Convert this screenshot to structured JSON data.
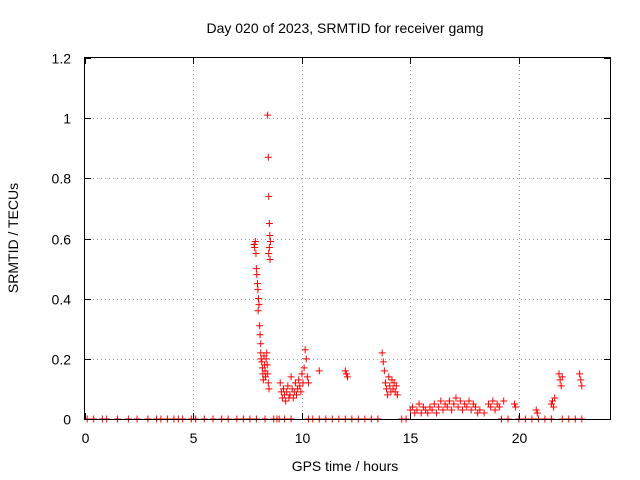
{
  "chart_data": {
    "type": "scatter",
    "title": "Day 020 of 2023, SRMTID for receiver gamg",
    "xlabel": "GPS time / hours",
    "ylabel": "SRMTID / TECUs",
    "xlim": [
      0,
      24.2
    ],
    "ylim": [
      0,
      1.2
    ],
    "xticks": [
      0,
      5,
      10,
      15,
      20
    ],
    "xtick_labels": [
      "0",
      "5",
      "10",
      "15",
      "20"
    ],
    "yticks": [
      0,
      0.2,
      0.4,
      0.6,
      0.8,
      1.0,
      1.2
    ],
    "ytick_labels": [
      "0",
      "0.2",
      "0.4",
      "0.6",
      "0.8",
      "1",
      "1.2"
    ],
    "grid": true,
    "marker": "plus",
    "color": "#ff0000",
    "series": [
      {
        "name": "SRMTID",
        "points": [
          [
            0.1,
            0
          ],
          [
            0.4,
            0
          ],
          [
            0.8,
            0
          ],
          [
            1.0,
            0
          ],
          [
            1.5,
            0
          ],
          [
            2.0,
            0
          ],
          [
            2.4,
            0
          ],
          [
            2.9,
            0
          ],
          [
            3.3,
            0
          ],
          [
            3.5,
            0
          ],
          [
            3.8,
            0
          ],
          [
            4.1,
            0
          ],
          [
            4.3,
            0
          ],
          [
            4.5,
            0
          ],
          [
            4.9,
            0
          ],
          [
            5.1,
            0
          ],
          [
            5.5,
            0
          ],
          [
            5.9,
            0
          ],
          [
            6.3,
            0
          ],
          [
            6.6,
            0
          ],
          [
            7.0,
            0
          ],
          [
            7.3,
            0
          ],
          [
            7.6,
            0
          ],
          [
            7.9,
            0
          ],
          [
            8.3,
            0
          ],
          [
            8.7,
            0
          ],
          [
            8.85,
            0
          ],
          [
            8.95,
            0
          ],
          [
            9.2,
            0
          ],
          [
            9.5,
            0
          ],
          [
            10.3,
            0
          ],
          [
            10.5,
            0
          ],
          [
            10.8,
            0
          ],
          [
            11.1,
            0
          ],
          [
            11.4,
            0
          ],
          [
            11.7,
            0
          ],
          [
            12.0,
            0
          ],
          [
            12.3,
            0
          ],
          [
            12.6,
            0
          ],
          [
            12.9,
            0
          ],
          [
            13.2,
            0
          ],
          [
            13.5,
            0
          ],
          [
            14.6,
            0
          ],
          [
            14.8,
            0
          ],
          [
            19.2,
            0
          ],
          [
            19.5,
            0
          ],
          [
            20.0,
            0
          ],
          [
            20.3,
            0
          ],
          [
            20.6,
            0
          ],
          [
            20.9,
            0
          ],
          [
            21.2,
            0
          ],
          [
            21.5,
            0
          ],
          [
            22.0,
            0
          ],
          [
            22.3,
            0
          ],
          [
            22.6,
            0
          ],
          [
            22.9,
            0
          ],
          [
            7.8,
            0.58
          ],
          [
            7.82,
            0.57
          ],
          [
            7.85,
            0.59
          ],
          [
            7.88,
            0.55
          ],
          [
            7.9,
            0.5
          ],
          [
            7.92,
            0.48
          ],
          [
            7.95,
            0.45
          ],
          [
            7.97,
            0.43
          ],
          [
            8.0,
            0.4
          ],
          [
            8.02,
            0.38
          ],
          [
            7.98,
            0.36
          ],
          [
            8.05,
            0.31
          ],
          [
            8.07,
            0.28
          ],
          [
            8.1,
            0.25
          ],
          [
            8.1,
            0.22
          ],
          [
            8.12,
            0.2
          ],
          [
            8.15,
            0.19
          ],
          [
            8.18,
            0.17
          ],
          [
            8.2,
            0.15
          ],
          [
            8.22,
            0.13
          ],
          [
            8.25,
            0.21
          ],
          [
            8.28,
            0.18
          ],
          [
            8.3,
            0.16
          ],
          [
            8.32,
            0.14
          ],
          [
            8.35,
            0.2
          ],
          [
            8.38,
            0.22
          ],
          [
            8.4,
            0.18
          ],
          [
            8.42,
            0.15
          ],
          [
            8.45,
            0.12
          ],
          [
            8.48,
            0.1
          ],
          [
            8.42,
            1.01
          ],
          [
            8.45,
            0.87
          ],
          [
            8.47,
            0.74
          ],
          [
            8.5,
            0.65
          ],
          [
            8.52,
            0.61
          ],
          [
            8.55,
            0.59
          ],
          [
            8.5,
            0.57
          ],
          [
            8.47,
            0.55
          ],
          [
            8.53,
            0.53
          ],
          [
            9.0,
            0.12
          ],
          [
            9.05,
            0.09
          ],
          [
            9.1,
            0.07
          ],
          [
            9.15,
            0.1
          ],
          [
            9.2,
            0.08
          ],
          [
            9.25,
            0.06
          ],
          [
            9.3,
            0.09
          ],
          [
            9.35,
            0.11
          ],
          [
            9.4,
            0.07
          ],
          [
            9.45,
            0.08
          ],
          [
            9.5,
            0.14
          ],
          [
            9.55,
            0.1
          ],
          [
            9.6,
            0.07
          ],
          [
            9.65,
            0.09
          ],
          [
            9.7,
            0.12
          ],
          [
            9.75,
            0.08
          ],
          [
            9.8,
            0.1
          ],
          [
            9.85,
            0.13
          ],
          [
            9.9,
            0.11
          ],
          [
            9.95,
            0.09
          ],
          [
            10.0,
            0.15
          ],
          [
            10.05,
            0.12
          ],
          [
            10.1,
            0.17
          ],
          [
            10.15,
            0.23
          ],
          [
            10.2,
            0.2
          ],
          [
            10.25,
            0.14
          ],
          [
            10.3,
            0.12
          ],
          [
            10.8,
            0.16
          ],
          [
            12.0,
            0.16
          ],
          [
            12.05,
            0.15
          ],
          [
            12.1,
            0.14
          ],
          [
            13.7,
            0.22
          ],
          [
            13.75,
            0.19
          ],
          [
            13.8,
            0.16
          ],
          [
            13.85,
            0.12
          ],
          [
            13.9,
            0.1
          ],
          [
            13.95,
            0.08
          ],
          [
            14.0,
            0.14
          ],
          [
            14.05,
            0.11
          ],
          [
            14.1,
            0.09
          ],
          [
            14.15,
            0.13
          ],
          [
            14.2,
            0.1
          ],
          [
            14.25,
            0.12
          ],
          [
            14.3,
            0.09
          ],
          [
            14.35,
            0.11
          ],
          [
            14.4,
            0.08
          ],
          [
            15.0,
            0.03
          ],
          [
            15.1,
            0.04
          ],
          [
            15.2,
            0.02
          ],
          [
            15.3,
            0.03
          ],
          [
            15.4,
            0.05
          ],
          [
            15.5,
            0.02
          ],
          [
            15.6,
            0.04
          ],
          [
            15.7,
            0.03
          ],
          [
            15.8,
            0.02
          ],
          [
            15.9,
            0.04
          ],
          [
            16.0,
            0.03
          ],
          [
            16.1,
            0.05
          ],
          [
            16.2,
            0.02
          ],
          [
            16.3,
            0.04
          ],
          [
            16.4,
            0.06
          ],
          [
            16.5,
            0.03
          ],
          [
            16.6,
            0.05
          ],
          [
            16.7,
            0.04
          ],
          [
            16.8,
            0.06
          ],
          [
            16.9,
            0.03
          ],
          [
            17.0,
            0.05
          ],
          [
            17.1,
            0.07
          ],
          [
            17.2,
            0.04
          ],
          [
            17.3,
            0.06
          ],
          [
            17.4,
            0.03
          ],
          [
            17.5,
            0.05
          ],
          [
            17.6,
            0.04
          ],
          [
            17.7,
            0.06
          ],
          [
            17.8,
            0.03
          ],
          [
            17.9,
            0.05
          ],
          [
            18.0,
            0.04
          ],
          [
            18.1,
            0.02
          ],
          [
            18.2,
            0.03
          ],
          [
            18.4,
            0.02
          ],
          [
            18.6,
            0.05
          ],
          [
            18.7,
            0.04
          ],
          [
            18.8,
            0.06
          ],
          [
            18.9,
            0.03
          ],
          [
            19.0,
            0.05
          ],
          [
            19.1,
            0.04
          ],
          [
            19.3,
            0.06
          ],
          [
            19.8,
            0.05
          ],
          [
            19.85,
            0.04
          ],
          [
            20.8,
            0.03
          ],
          [
            20.85,
            0.02
          ],
          [
            21.5,
            0.05
          ],
          [
            21.55,
            0.06
          ],
          [
            21.6,
            0.04
          ],
          [
            21.65,
            0.07
          ],
          [
            21.85,
            0.15
          ],
          [
            21.9,
            0.13
          ],
          [
            21.95,
            0.11
          ],
          [
            22.0,
            0.14
          ],
          [
            22.8,
            0.15
          ],
          [
            22.85,
            0.13
          ],
          [
            22.9,
            0.11
          ]
        ]
      }
    ]
  }
}
